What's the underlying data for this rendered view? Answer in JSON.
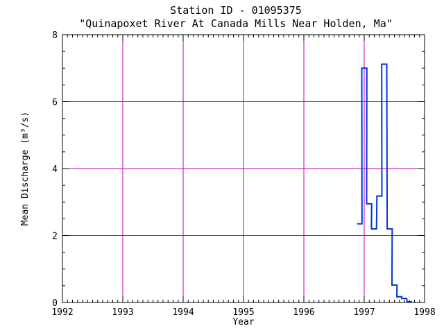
{
  "chart_data": {
    "type": "line",
    "step": true,
    "title": "Station ID - 01095375",
    "subtitle": "\"Quinapoxet River At Canada Mills Near Holden, Ma\"",
    "xlabel": "Year",
    "ylabel": "Mean Discharge (m³/s)",
    "xlim": [
      1992,
      1998
    ],
    "ylim": [
      0,
      8
    ],
    "xticks": [
      "1992",
      "1993",
      "1994",
      "1995",
      "1996",
      "1997",
      "1998"
    ],
    "yticks": [
      "0",
      "2",
      "4",
      "6",
      "8"
    ],
    "grid": true,
    "colors": {
      "grid": "#c000c0",
      "line": "#0033dd",
      "axes": "#000000"
    },
    "series": [
      {
        "x": [
          1996.88,
          1996.96,
          1997.04,
          1997.12,
          1997.21,
          1997.29,
          1997.38,
          1997.46,
          1997.54,
          1997.62,
          1997.71
        ],
        "y": [
          2.35,
          7.0,
          2.95,
          2.2,
          3.18,
          7.12,
          2.2,
          0.52,
          0.17,
          0.12,
          0.02
        ]
      }
    ]
  }
}
